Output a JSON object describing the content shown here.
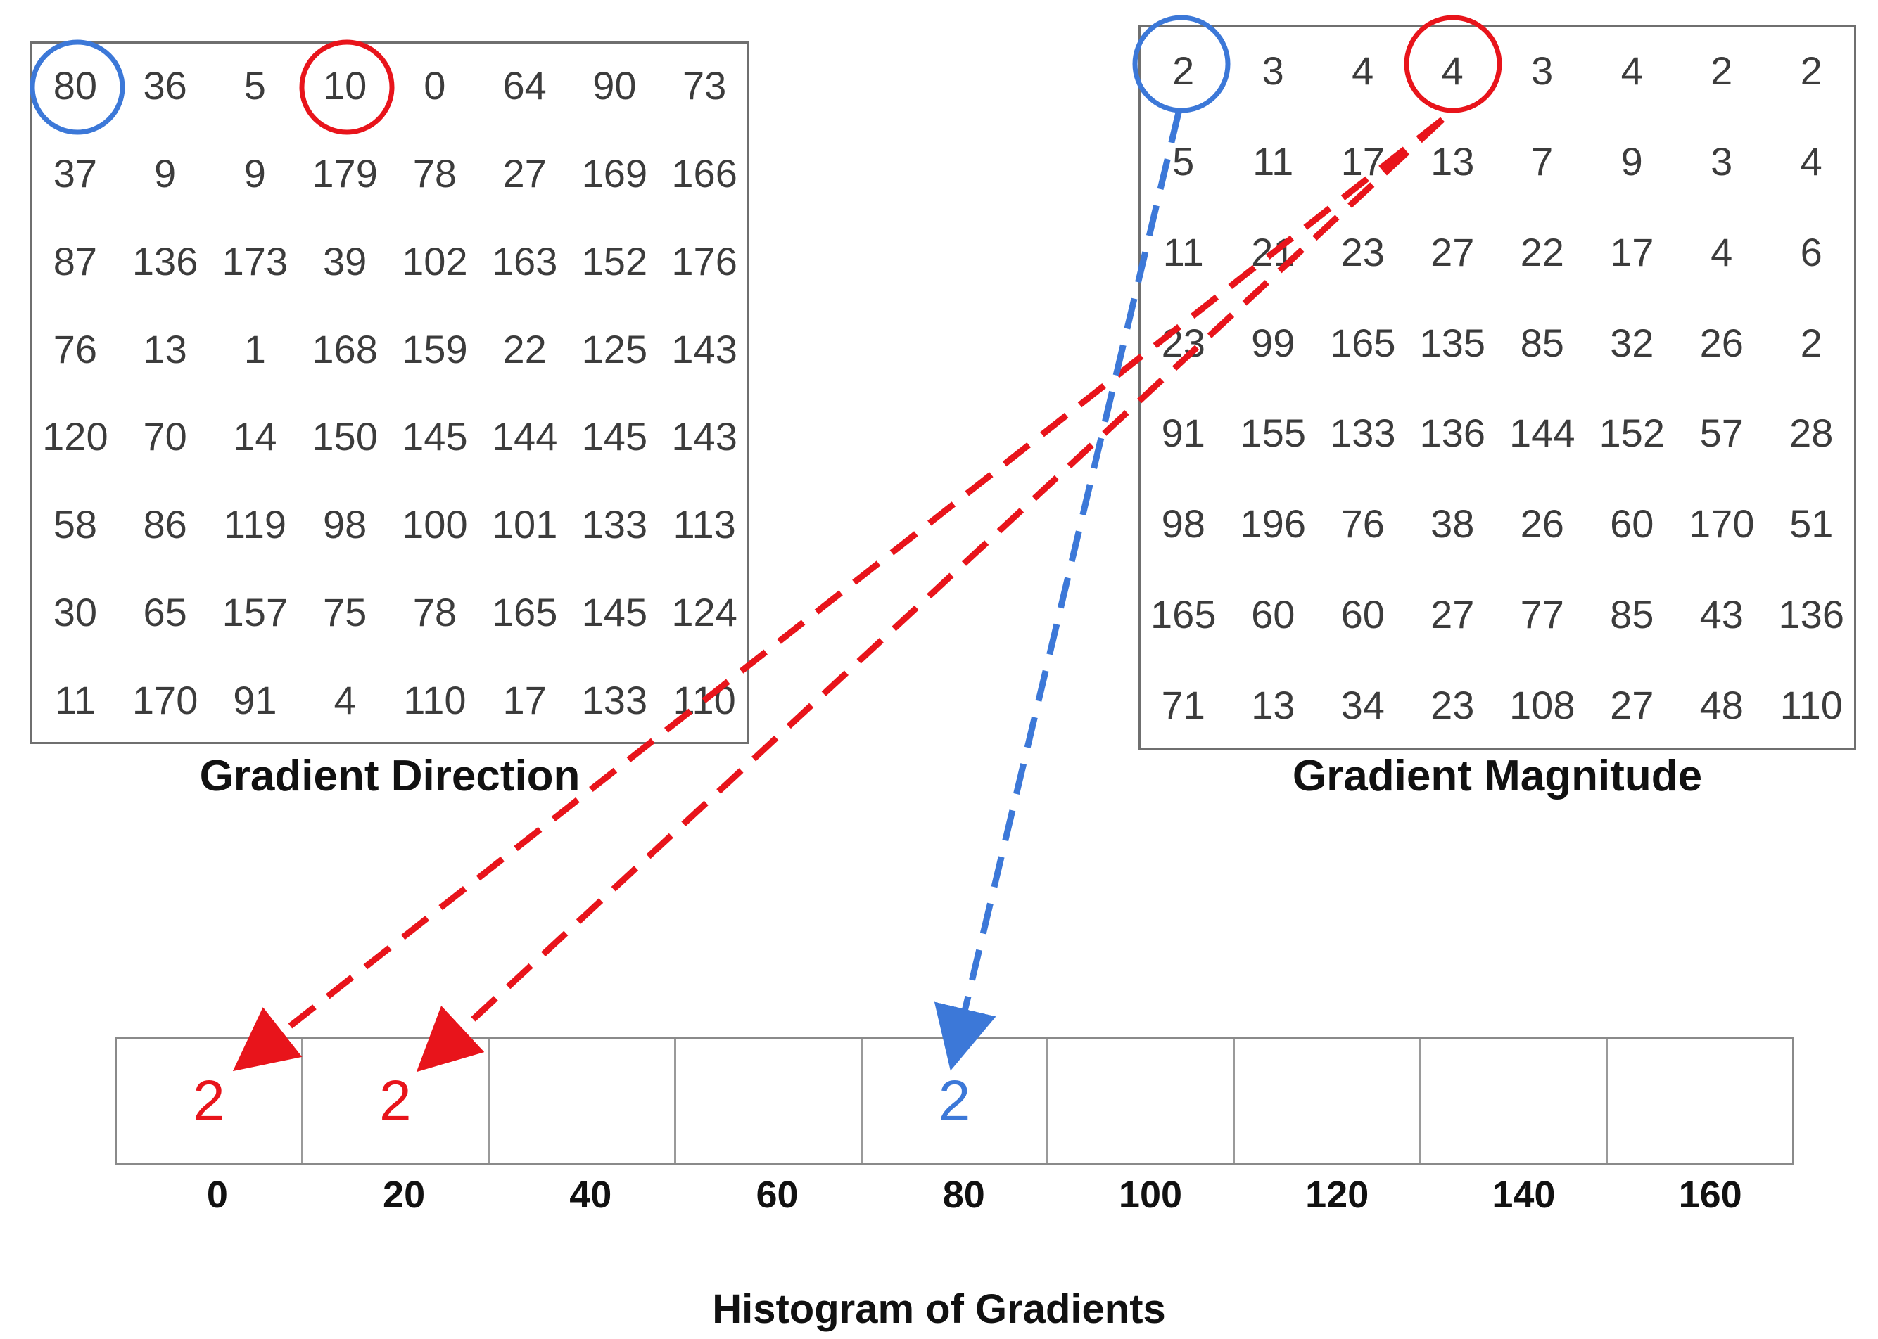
{
  "direction": {
    "caption": "Gradient Direction",
    "rows": [
      [
        "80",
        "36",
        "5",
        "10",
        "0",
        "64",
        "90",
        "73"
      ],
      [
        "37",
        "9",
        "9",
        "179",
        "78",
        "27",
        "169",
        "166"
      ],
      [
        "87",
        "136",
        "173",
        "39",
        "102",
        "163",
        "152",
        "176"
      ],
      [
        "76",
        "13",
        "1",
        "168",
        "159",
        "22",
        "125",
        "143"
      ],
      [
        "120",
        "70",
        "14",
        "150",
        "145",
        "144",
        "145",
        "143"
      ],
      [
        "58",
        "86",
        "119",
        "98",
        "100",
        "101",
        "133",
        "113"
      ],
      [
        "30",
        "65",
        "157",
        "75",
        "78",
        "165",
        "145",
        "124"
      ],
      [
        "11",
        "170",
        "91",
        "4",
        "110",
        "17",
        "133",
        "110"
      ]
    ]
  },
  "magnitude": {
    "caption": "Gradient Magnitude",
    "rows": [
      [
        "2",
        "3",
        "4",
        "4",
        "3",
        "4",
        "2",
        "2"
      ],
      [
        "5",
        "11",
        "17",
        "13",
        "7",
        "9",
        "3",
        "4"
      ],
      [
        "11",
        "21",
        "23",
        "27",
        "22",
        "17",
        "4",
        "6"
      ],
      [
        "23",
        "99",
        "165",
        "135",
        "85",
        "32",
        "26",
        "2"
      ],
      [
        "91",
        "155",
        "133",
        "136",
        "144",
        "152",
        "57",
        "28"
      ],
      [
        "98",
        "196",
        "76",
        "38",
        "26",
        "60",
        "170",
        "51"
      ],
      [
        "165",
        "60",
        "60",
        "27",
        "77",
        "85",
        "43",
        "136"
      ],
      [
        "71",
        "13",
        "34",
        "23",
        "108",
        "27",
        "48",
        "110"
      ]
    ]
  },
  "histogram": {
    "caption": "Histogram of Gradients",
    "bins": [
      "0",
      "20",
      "40",
      "60",
      "80",
      "100",
      "120",
      "140",
      "160"
    ],
    "values": [
      {
        "bin": 0,
        "text": "2",
        "color": "#e8141b"
      },
      {
        "bin": 1,
        "text": "2",
        "color": "#e8141b"
      },
      {
        "bin": 4,
        "text": "2",
        "color": "#3c78d8"
      }
    ]
  },
  "colors": {
    "red": "#e8141b",
    "blue": "#3c78d8"
  }
}
